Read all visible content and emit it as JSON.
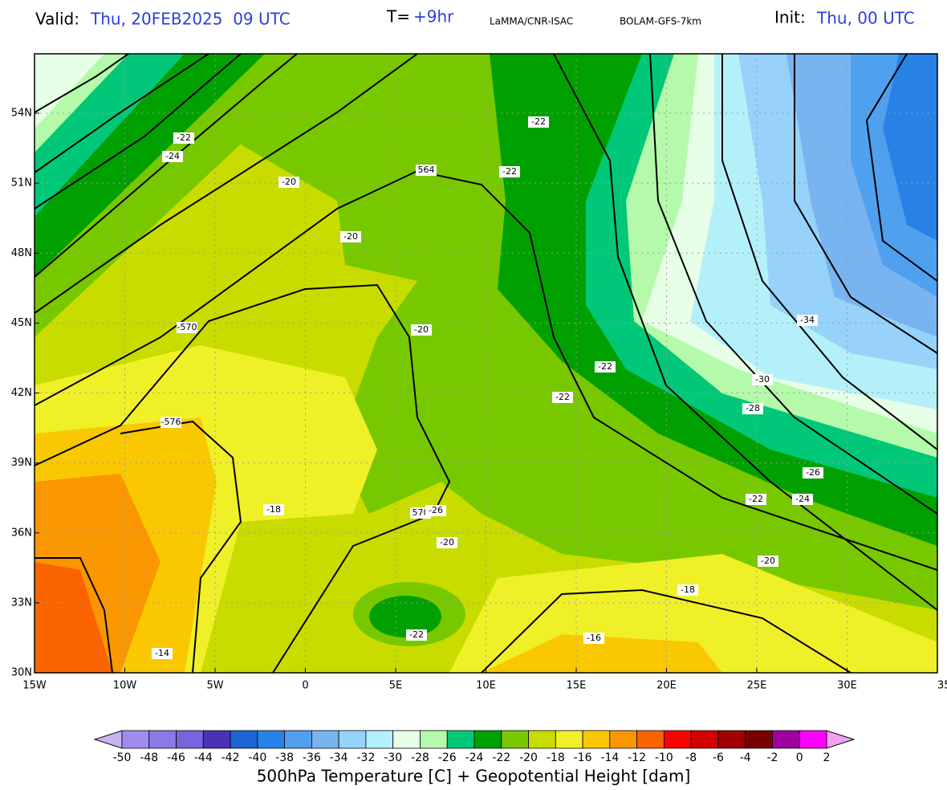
{
  "header": {
    "valid_label": "Valid:",
    "valid_time": "Thu, 20FEB2025  09 UTC",
    "lead_label": "T=",
    "lead_time": "+9hr",
    "institute": "LaMMA/CNR-ISAC",
    "model": "BOLAM-GFS-7km",
    "init_label": "Init:",
    "init_time": "Thu, 00 UTC"
  },
  "map": {
    "lat_labels": [
      "54N",
      "51N",
      "48N",
      "45N",
      "42N",
      "39N",
      "36N",
      "33N",
      "30N"
    ],
    "lon_labels": [
      "15W",
      "10W",
      "5W",
      "0",
      "5E",
      "10E",
      "15E",
      "20E",
      "25E",
      "30E",
      "35E"
    ],
    "contour_labels": [
      "-22",
      "-24",
      "-20",
      "564",
      "-22",
      "-22",
      "-20",
      "-570",
      "-20",
      "-34",
      "-22",
      "-30",
      "-22",
      "-28",
      "-576",
      "-18",
      "570",
      "-26",
      "-26",
      "-22",
      "-24",
      "-20",
      "-20",
      "-18",
      "-22",
      "-16",
      "-14"
    ]
  },
  "colorbar": {
    "ticks": [
      -50,
      -48,
      -46,
      -44,
      -42,
      -40,
      -38,
      -36,
      -34,
      -32,
      -30,
      -28,
      -26,
      -24,
      -22,
      -20,
      -18,
      -16,
      -14,
      -12,
      -10,
      -8,
      -6,
      -4,
      -2,
      0,
      2
    ],
    "colors": [
      "#a08cf0",
      "#8c78e6",
      "#7864dc",
      "#4b32b4",
      "#1e64d2",
      "#2882e6",
      "#50a0f0",
      "#78b4f0",
      "#96d2fa",
      "#b4f0fa",
      "#e6ffe6",
      "#b4faaa",
      "#00c878",
      "#00a000",
      "#78c800",
      "#c8dc00",
      "#f0f028",
      "#fac800",
      "#fa9600",
      "#fa6400",
      "#fa0000",
      "#d20000",
      "#a00000",
      "#780000",
      "#a000a0",
      "#ff00ff"
    ],
    "under_color": "#c8b4f0",
    "over_color": "#f0a0f0",
    "title": "500hPa Temperature [C] + Geopotential Height [dam]"
  }
}
